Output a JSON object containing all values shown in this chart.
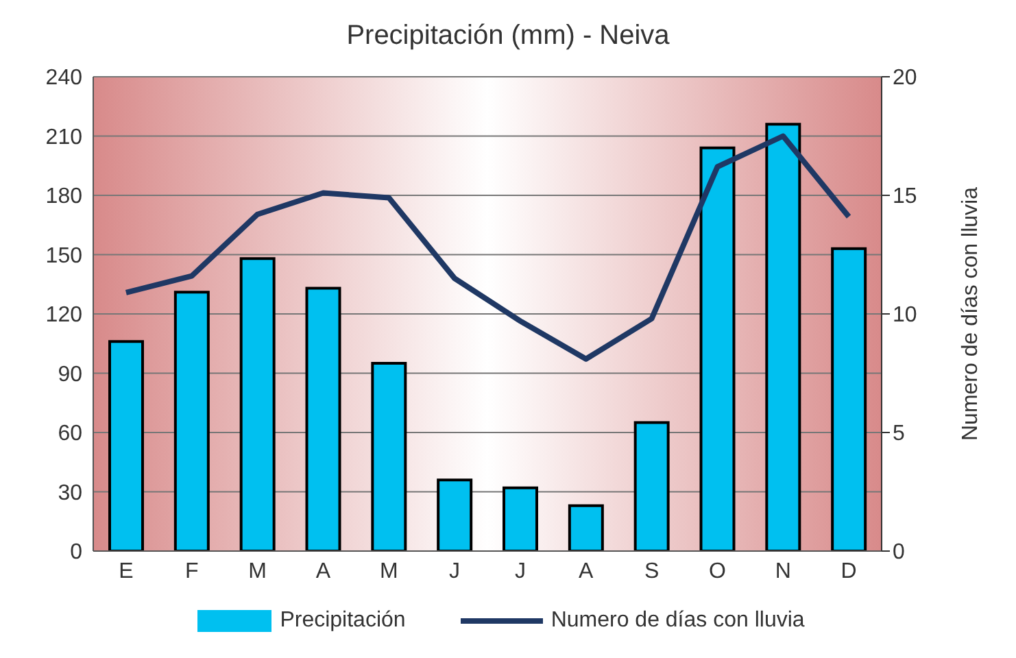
{
  "chart_data": {
    "type": "bar",
    "title": "Precipitación (mm) - Neiva",
    "y2label": "Numero de días con lluvia",
    "categories": [
      "E",
      "F",
      "M",
      "A",
      "M",
      "J",
      "J",
      "A",
      "S",
      "O",
      "N",
      "D"
    ],
    "series": [
      {
        "name": "Precipitación",
        "color": "#00c0f0",
        "values": [
          106,
          131,
          148,
          133,
          95,
          36,
          32,
          23,
          65,
          204,
          216,
          153
        ]
      },
      {
        "name": "Numero de días con lluvia",
        "type": "line",
        "axis": "y2",
        "color": "#1f3864",
        "marker": "none",
        "values": [
          10.9,
          11.6,
          14.2,
          15.1,
          14.9,
          11.5,
          9.7,
          8.1,
          9.8,
          16.2,
          17.5,
          14.1
        ]
      }
    ],
    "ylim": [
      0,
      240
    ],
    "yticks": [
      0,
      30,
      60,
      90,
      120,
      150,
      180,
      210,
      240
    ],
    "y2lim": [
      0,
      20
    ],
    "y2ticks": [
      0,
      5,
      10,
      15,
      20
    ],
    "grid": "y",
    "legend": "bottom"
  }
}
